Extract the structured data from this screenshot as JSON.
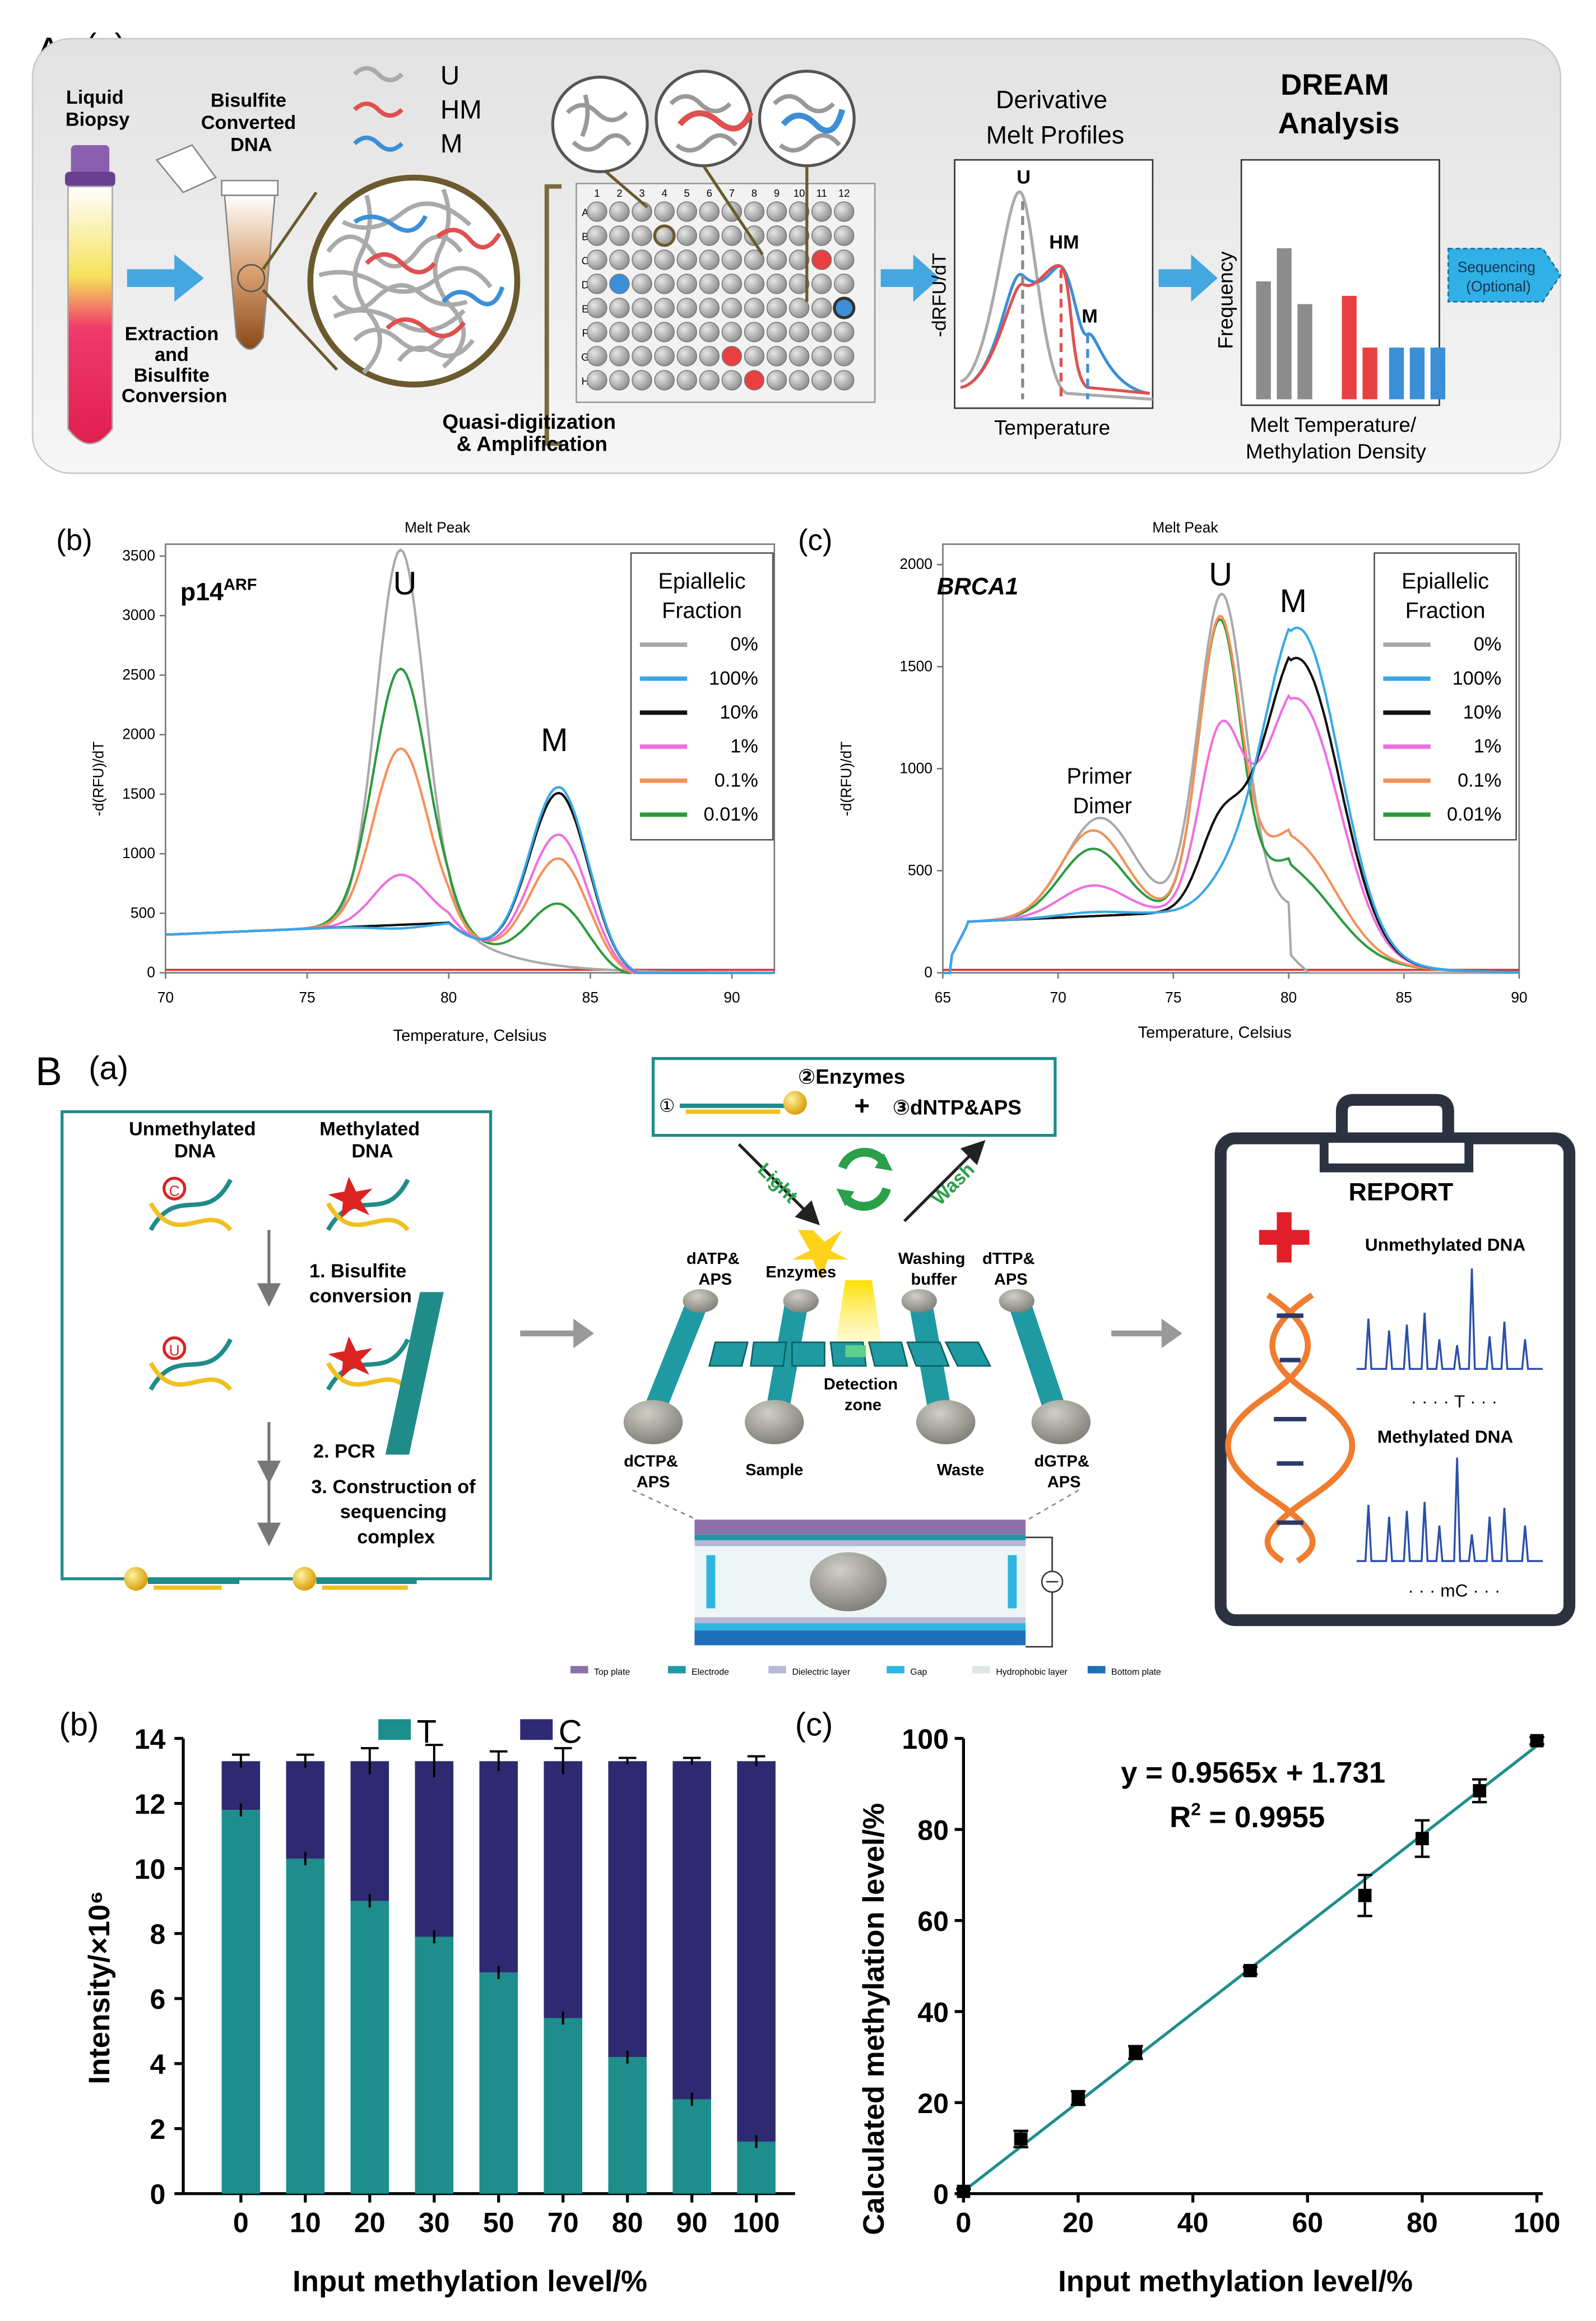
{
  "panelA": {
    "label": "A",
    "sub_a": "(a)",
    "liquid_biopsy": [
      "Liquid",
      "Biopsy"
    ],
    "bisulfite_dna": [
      "Bisulfite",
      "Converted",
      "DNA"
    ],
    "extraction": [
      "Extraction",
      "and",
      "Bisulfite",
      "Conversion"
    ],
    "legend": [
      "U",
      "HM",
      "M"
    ],
    "plate_cols": [
      "1",
      "2",
      "3",
      "4",
      "5",
      "6",
      "7",
      "8",
      "9",
      "10",
      "11",
      "12"
    ],
    "plate_rows": [
      "A",
      "B",
      "C",
      "D",
      "E",
      "F",
      "G",
      "H"
    ],
    "quasi": [
      "Quasi-digitization",
      "& Amplification"
    ],
    "deriv_title": [
      "Derivative",
      "Melt Profiles"
    ],
    "deriv_ylabel": "-dRFU/dT",
    "deriv_xlabel": "Temperature",
    "deriv_peaks": [
      "U",
      "HM",
      "M"
    ],
    "dream_title": [
      "DREAM",
      "Analysis"
    ],
    "dream_ylabel": "Frequency",
    "dream_xlabel": [
      "Melt Temperature/",
      "Methylation Density"
    ],
    "dream_bars": [
      {
        "h": 0.57,
        "c": "gray"
      },
      {
        "h": 0.73,
        "c": "gray"
      },
      {
        "h": 0.46,
        "c": "gray"
      },
      {
        "h": 0.5,
        "c": "red"
      },
      {
        "h": 0.25,
        "c": "red"
      },
      {
        "h": 0.25,
        "c": "blue"
      },
      {
        "h": 0.25,
        "c": "blue"
      },
      {
        "h": 0.25,
        "c": "blue"
      }
    ],
    "sequencing": [
      "Sequencing",
      "(Optional)"
    ]
  },
  "panelAb": {
    "label": "(b)",
    "chart_title": "Melt Peak",
    "gene": "p14",
    "gene_sup": "ARF",
    "ylabel": "-d(RFU)/dT",
    "xlabel": "Temperature, Celsius",
    "yticks": [
      "0",
      "500",
      "1000",
      "1500",
      "2000",
      "2500",
      "3000",
      "3500"
    ],
    "xticks": [
      "70",
      "75",
      "80",
      "85",
      "90"
    ],
    "peak_u": "U",
    "peak_m": "M"
  },
  "panelAc": {
    "label": "(c)",
    "chart_title": "Melt Peak",
    "gene": "BRCA1",
    "ylabel": "-d(RFU)/dT",
    "xlabel": "Temperature, Celsius",
    "yticks": [
      "0",
      "500",
      "1000",
      "1500",
      "2000"
    ],
    "xticks": [
      "65",
      "70",
      "75",
      "80",
      "85",
      "90"
    ],
    "peak_u": "U",
    "peak_m": "M",
    "primer": [
      "Primer",
      "Dimer"
    ]
  },
  "epi_legend": {
    "title": [
      "Epiallelic",
      "Fraction"
    ],
    "items": [
      {
        "label": "0%",
        "color": "#a9a9a9"
      },
      {
        "label": "100%",
        "color": "#3aa7e8"
      },
      {
        "label": "10%",
        "color": "#111111"
      },
      {
        "label": "1%",
        "color": "#ef6fe0"
      },
      {
        "label": "0.1%",
        "color": "#f4905a"
      },
      {
        "label": "0.01%",
        "color": "#2d9a3e"
      }
    ]
  },
  "panelB": {
    "label": "B",
    "sub_a": "(a)",
    "unmeth": [
      "Unmethylated",
      "DNA"
    ],
    "meth": [
      "Methylated",
      "DNA"
    ],
    "step1": [
      "1. Bisulfite",
      "conversion"
    ],
    "step2": "2. PCR",
    "step3": [
      "3. Construction of",
      "sequencing",
      "complex"
    ],
    "c_letter": "C",
    "u_letter": "U",
    "enzymes_box": "②Enzymes",
    "complex_num": "①",
    "dntp": "③dNTP&APS",
    "plus": "+",
    "light": "Light",
    "wash": "Wash",
    "datp": [
      "dATP&",
      "APS"
    ],
    "enzymes": "Enzymes",
    "washing": [
      "Washing",
      "buffer"
    ],
    "dttp": [
      "dTTP&",
      "APS"
    ],
    "detection": [
      "Detection",
      "zone"
    ],
    "dctp": [
      "dCTP&",
      "APS"
    ],
    "sample": "Sample",
    "waste": "Waste",
    "dgtp": [
      "dGTP&",
      "APS"
    ],
    "chip_legend": [
      "Top plate",
      "Electrode",
      "Dielectric layer",
      "Gap",
      "Hydrophobic layer",
      "Bottom plate"
    ],
    "chip_legend_colors": [
      "#8a6fa8",
      "#1f9aa3",
      "#b8b8d8",
      "#2fb6e0",
      "#dfe6ea",
      "#1e6fb8"
    ],
    "report": "REPORT",
    "unmeth_dna": "Unmethylated DNA",
    "meth_dna": "Methylated DNA",
    "t_mark": "T",
    "mc_mark": "mC"
  },
  "panelBb": {
    "label": "(b)",
    "legend_t": "T",
    "legend_c": "C",
    "color_t": "#1d8e8c",
    "color_c": "#2e2a72",
    "ylabel": "Intensity/×10⁶",
    "xlabel": "Input methylation level/%",
    "yticks": [
      "0",
      "2",
      "4",
      "6",
      "8",
      "10",
      "12",
      "14"
    ],
    "chart_data": {
      "type": "bar",
      "stacked": true,
      "categories": [
        "0",
        "10",
        "20",
        "30",
        "50",
        "70",
        "80",
        "90",
        "100"
      ],
      "series": [
        {
          "name": "T",
          "values": [
            11.8,
            10.3,
            9.0,
            7.9,
            6.8,
            5.4,
            4.2,
            2.9,
            1.6
          ]
        },
        {
          "name": "C",
          "values": [
            1.5,
            3.0,
            4.3,
            5.4,
            6.5,
            7.9,
            9.1,
            10.4,
            11.7
          ]
        }
      ],
      "total_error": [
        0.2,
        0.2,
        0.4,
        0.5,
        0.3,
        0.4,
        0.1,
        0.1,
        0.15
      ],
      "ylim": [
        0,
        14
      ],
      "ylabel": "Intensity/×10⁶",
      "xlabel": "Input methylation level/%"
    }
  },
  "panelBc": {
    "label": "(c)",
    "equation": "y = 0.9565x + 1.731",
    "r2_prefix": "R",
    "r2_sup": "2",
    "r2_value": " = 0.9955",
    "ylabel": "Calculated methylation level/%",
    "xlabel": "Input methylation level/%",
    "xticks": [
      "0",
      "20",
      "40",
      "60",
      "80",
      "100"
    ],
    "yticks": [
      "0",
      "20",
      "40",
      "60",
      "80",
      "100"
    ],
    "chart_data": {
      "type": "scatter",
      "x": [
        0,
        10,
        20,
        30,
        50,
        70,
        80,
        90,
        100
      ],
      "y": [
        0.5,
        12,
        21,
        31,
        49,
        65.5,
        78,
        88.5,
        99.5
      ],
      "yerr": [
        0.5,
        1.8,
        1.5,
        1.4,
        0.8,
        4.5,
        4.0,
        2.5,
        0.8
      ],
      "fit": {
        "slope": 0.9565,
        "intercept": 1.731,
        "r2": 0.9955
      },
      "xlim": [
        0,
        100
      ],
      "ylim": [
        0,
        100
      ],
      "xlabel": "Input methylation level/%",
      "ylabel": "Calculated methylation level/%"
    }
  }
}
